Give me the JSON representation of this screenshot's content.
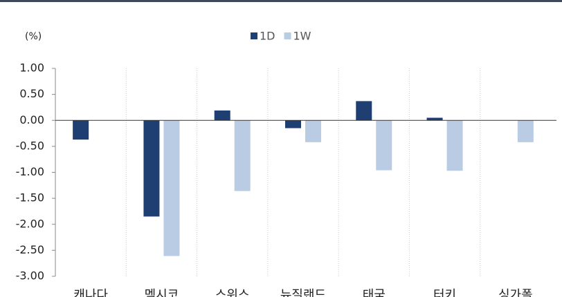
{
  "chart_data": {
    "type": "bar",
    "y_label": "(%)",
    "categories": [
      "캐나다",
      "멕시코",
      "스위스",
      "뉴질랜드",
      "태국",
      "터키",
      "싱가폴"
    ],
    "series": [
      {
        "name": "1D",
        "color": "#1f3f73",
        "values": [
          -0.37,
          -1.85,
          0.19,
          -0.15,
          0.37,
          0.05,
          0
        ]
      },
      {
        "name": "1W",
        "color": "#b9cce4",
        "values": [
          0,
          -2.61,
          -1.36,
          -0.42,
          -0.96,
          -0.97,
          -0.42
        ]
      }
    ],
    "ylim": [
      -3,
      1
    ],
    "yticks": [
      {
        "value": 1,
        "label": "1.00"
      },
      {
        "value": 0.5,
        "label": "0.50"
      },
      {
        "value": 0,
        "label": "0.00"
      },
      {
        "value": -0.5,
        "label": "-0.50"
      },
      {
        "value": -1,
        "label": "-1.00"
      },
      {
        "value": -1.5,
        "label": "-1.50"
      },
      {
        "value": -2,
        "label": "-2.00"
      },
      {
        "value": -2.5,
        "label": "-2.50"
      },
      {
        "value": -3,
        "label": "-3.00"
      }
    ],
    "grid": false
  }
}
